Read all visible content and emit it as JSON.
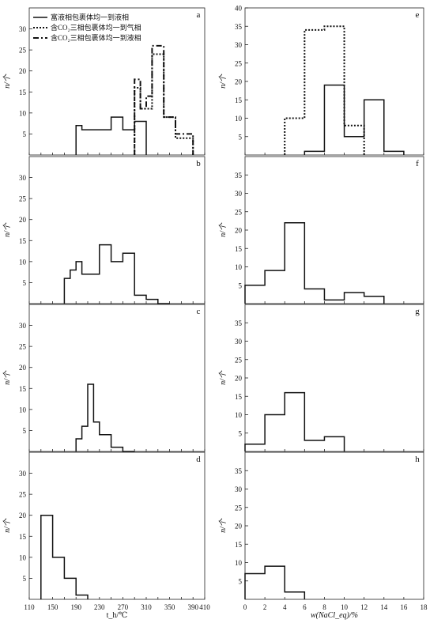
{
  "legend": [
    {
      "label": "富液相包裹体均一到液相",
      "style": "solid"
    },
    {
      "label": "含CO₂三相包裹体均一到气相",
      "style": "dotted"
    },
    {
      "label": "含CO₂三相包裹体均一到液相",
      "style": "dashdot"
    }
  ],
  "axes": {
    "left_xlabel": "t_h/℃",
    "right_xlabel": "w(NaCl_eq)/%",
    "ylabel": "n/个"
  },
  "chart_data": [
    {
      "type": "bar",
      "panel": "a",
      "side": "left",
      "xlim": [
        110,
        410
      ],
      "ylim": [
        0,
        35
      ],
      "yticks": [
        5,
        10,
        15,
        20,
        25,
        30
      ],
      "series": [
        {
          "style": "solid",
          "edges": [
            190,
            200,
            230,
            250,
            270,
            290,
            310
          ],
          "values": [
            7,
            6,
            6,
            9,
            6,
            8
          ]
        },
        {
          "style": "dotted",
          "edges": [
            290,
            300,
            310,
            320,
            340,
            360,
            380,
            390
          ],
          "values": [
            16,
            11,
            11,
            24,
            9,
            4,
            4
          ]
        },
        {
          "style": "dashdot",
          "edges": [
            290,
            300,
            310,
            320,
            340,
            360,
            380,
            390
          ],
          "values": [
            18,
            11,
            14,
            26,
            9,
            5,
            5
          ]
        }
      ]
    },
    {
      "type": "bar",
      "panel": "b",
      "side": "left",
      "xlim": [
        110,
        410
      ],
      "ylim": [
        0,
        35
      ],
      "yticks": [
        5,
        10,
        15,
        20,
        25,
        30
      ],
      "series": [
        {
          "style": "solid",
          "edges": [
            170,
            180,
            190,
            200,
            230,
            250,
            260,
            270,
            290,
            310,
            330,
            350
          ],
          "values": [
            6,
            8,
            10,
            7,
            14,
            10,
            10,
            12,
            2,
            1,
            0
          ]
        }
      ]
    },
    {
      "type": "bar",
      "panel": "c",
      "side": "left",
      "xlim": [
        110,
        410
      ],
      "ylim": [
        0,
        35
      ],
      "yticks": [
        5,
        10,
        15,
        20,
        25,
        30
      ],
      "series": [
        {
          "style": "solid",
          "edges": [
            190,
            200,
            210,
            220,
            230,
            250,
            270,
            290
          ],
          "values": [
            3,
            6,
            16,
            7,
            4,
            1,
            0
          ]
        }
      ]
    },
    {
      "type": "bar",
      "panel": "d",
      "side": "left",
      "xlim": [
        110,
        410
      ],
      "ylim": [
        0,
        35
      ],
      "yticks": [
        5,
        10,
        15,
        20,
        25,
        30
      ],
      "xticks": [
        110,
        150,
        190,
        230,
        270,
        310,
        350,
        390,
        410
      ],
      "series": [
        {
          "style": "solid",
          "edges": [
            130,
            150,
            170,
            190,
            210
          ],
          "values": [
            20,
            10,
            5,
            1
          ]
        }
      ]
    },
    {
      "type": "bar",
      "panel": "e",
      "side": "right",
      "xlim": [
        0,
        18
      ],
      "ylim": [
        0,
        40
      ],
      "yticks": [
        5,
        10,
        15,
        20,
        25,
        30,
        35,
        40
      ],
      "series": [
        {
          "style": "solid",
          "edges": [
            6,
            8,
            10,
            12,
            14,
            16
          ],
          "values": [
            1,
            19,
            5,
            15,
            1
          ]
        },
        {
          "style": "dotted",
          "edges": [
            4,
            6,
            8,
            10,
            12
          ],
          "values": [
            10,
            34,
            35,
            8
          ]
        }
      ]
    },
    {
      "type": "bar",
      "panel": "f",
      "side": "right",
      "xlim": [
        0,
        18
      ],
      "ylim": [
        0,
        40
      ],
      "yticks": [
        5,
        10,
        15,
        20,
        25,
        30,
        35
      ],
      "series": [
        {
          "style": "solid",
          "edges": [
            0,
            2,
            4,
            6,
            8,
            10,
            12,
            14
          ],
          "values": [
            5,
            9,
            22,
            4,
            1,
            3,
            2
          ]
        }
      ]
    },
    {
      "type": "bar",
      "panel": "g",
      "side": "right",
      "xlim": [
        0,
        18
      ],
      "ylim": [
        0,
        40
      ],
      "yticks": [
        5,
        10,
        15,
        20,
        25,
        30,
        35
      ],
      "series": [
        {
          "style": "solid",
          "edges": [
            0,
            2,
            4,
            6,
            8,
            10
          ],
          "values": [
            2,
            10,
            16,
            3,
            4
          ]
        }
      ]
    },
    {
      "type": "bar",
      "panel": "h",
      "side": "right",
      "xlim": [
        0,
        18
      ],
      "ylim": [
        0,
        40
      ],
      "yticks": [
        5,
        10,
        15,
        20,
        25,
        30,
        35
      ],
      "xticks": [
        0,
        2,
        4,
        6,
        8,
        10,
        12,
        14,
        16,
        18
      ],
      "series": [
        {
          "style": "solid",
          "edges": [
            0,
            2,
            4,
            6
          ],
          "values": [
            7,
            9,
            2
          ]
        }
      ]
    }
  ]
}
